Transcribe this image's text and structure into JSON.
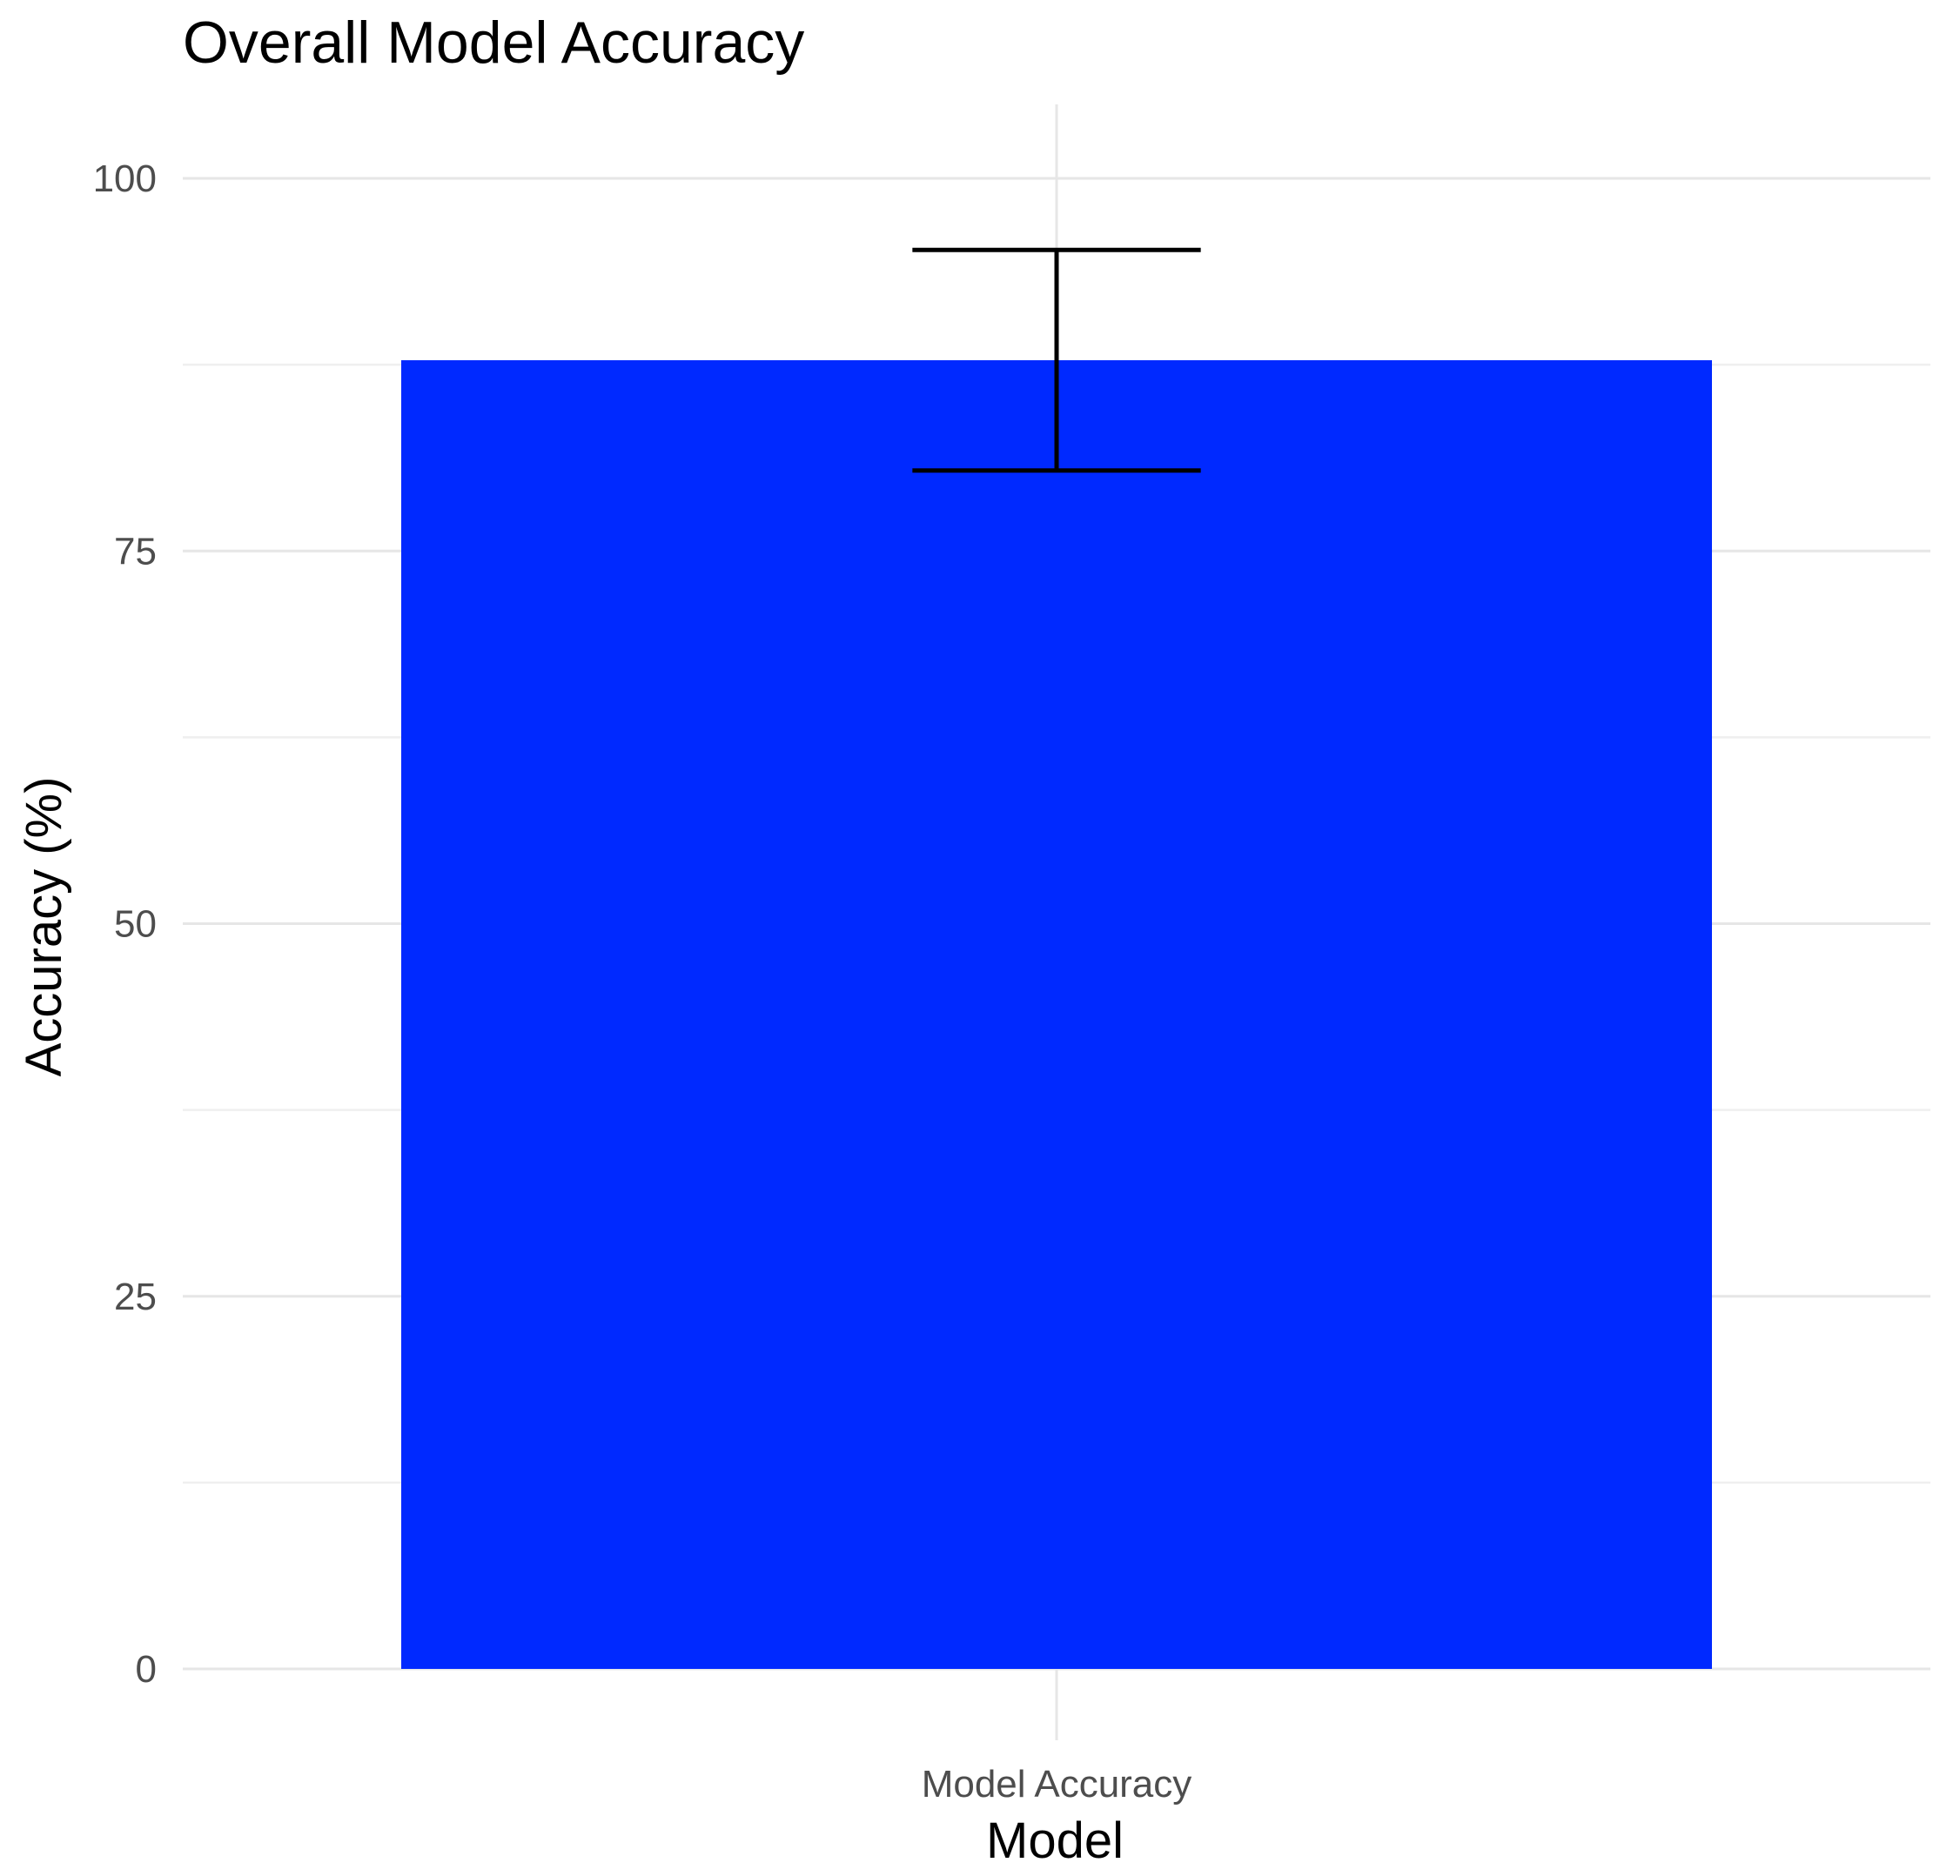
{
  "chart_data": {
    "type": "bar",
    "title": "Overall Model Accuracy",
    "xlabel": "Model",
    "ylabel": "Accuracy (%)",
    "categories": [
      "Model Accuracy"
    ],
    "values": [
      87.8
    ],
    "error_bars": [
      {
        "lower": 80.4,
        "upper": 95.2
      }
    ],
    "ylim": [
      0,
      100
    ],
    "y_ticks": [
      0,
      25,
      50,
      75,
      100
    ],
    "y_minor_ticks": [
      12.5,
      37.5,
      62.5,
      87.5
    ],
    "grid": true,
    "legend": "none",
    "bar_color": "#0029FF",
    "error_bar_color": "#000000"
  }
}
